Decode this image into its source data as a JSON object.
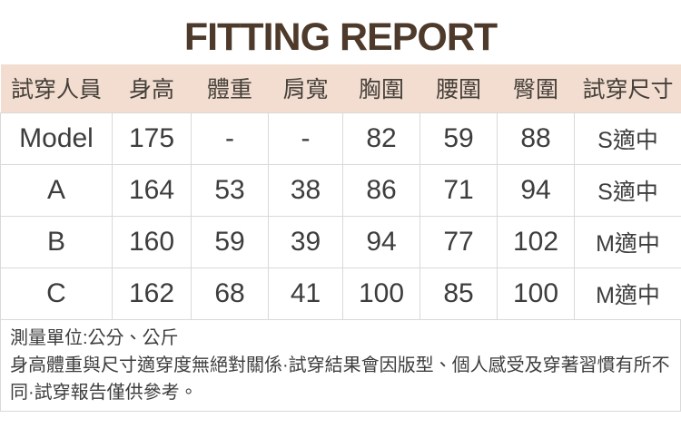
{
  "title": "FITTING REPORT",
  "colors": {
    "title_brown": "#4d3a2b",
    "header_bg": "#f2ddd0",
    "grid_border": "#d9d9d9",
    "body_text": "#3d3d3d"
  },
  "table": {
    "columns": [
      "試穿人員",
      "身高",
      "體重",
      "肩寬",
      "胸圍",
      "腰圍",
      "臀圍",
      "試穿尺寸"
    ],
    "rows": [
      [
        "Model",
        "175",
        "-",
        "-",
        "82",
        "59",
        "88",
        "S適中"
      ],
      [
        "A",
        "164",
        "53",
        "38",
        "86",
        "71",
        "94",
        "S適中"
      ],
      [
        "B",
        "160",
        "59",
        "39",
        "94",
        "77",
        "102",
        "M適中"
      ],
      [
        "C",
        "162",
        "68",
        "41",
        "100",
        "85",
        "100",
        "M適中"
      ]
    ]
  },
  "notes": {
    "unit": "測量單位:公分、公斤",
    "disclaimer": "身高體重與尺寸適穿度無絕對關係·試穿結果會因版型、個人感受及穿著習慣有所不同·試穿報告僅供參考。"
  }
}
